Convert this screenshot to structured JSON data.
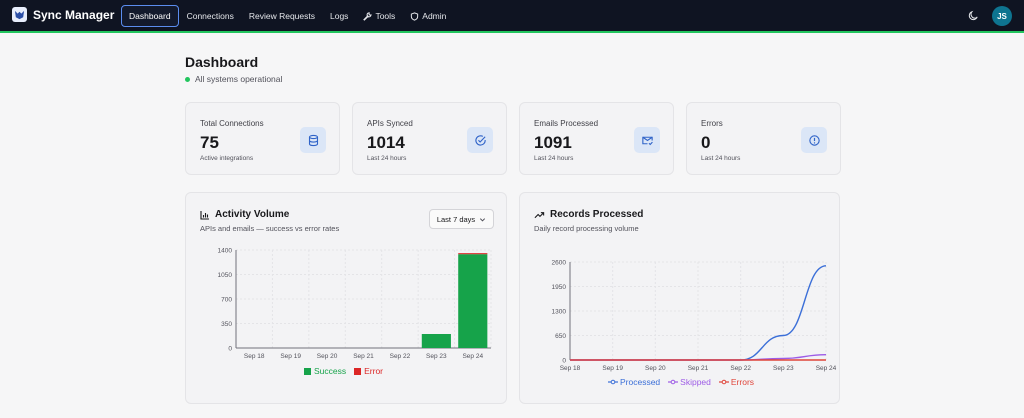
{
  "header": {
    "brand": "Sync Manager",
    "nav": [
      {
        "label": "Dashboard",
        "active": true
      },
      {
        "label": "Connections"
      },
      {
        "label": "Review Requests"
      },
      {
        "label": "Logs"
      },
      {
        "label": "Tools",
        "icon": "wrench-icon"
      },
      {
        "label": "Admin",
        "icon": "shield-icon"
      }
    ],
    "user_initials": "JS",
    "accent": "#22c55e"
  },
  "page": {
    "title": "Dashboard",
    "status": "All systems operational"
  },
  "stats": [
    {
      "label": "Total Connections",
      "value": "75",
      "sub": "Active integrations",
      "icon": "database-icon"
    },
    {
      "label": "APIs Synced",
      "value": "1014",
      "sub": "Last 24 hours",
      "icon": "check-circle-icon"
    },
    {
      "label": "Emails Processed",
      "value": "1091",
      "sub": "Last 24 hours",
      "icon": "mail-check-icon"
    },
    {
      "label": "Errors",
      "value": "0",
      "sub": "Last 24 hours",
      "icon": "alert-circle-icon"
    }
  ],
  "activity": {
    "title": "Activity Volume",
    "subtitle": "APIs and emails — success vs error rates",
    "range_label": "Last 7 days"
  },
  "records": {
    "title": "Records Processed",
    "subtitle": "Daily record processing volume"
  },
  "chart_data": [
    {
      "type": "bar",
      "stacked": true,
      "categories": [
        "Sep 18",
        "Sep 19",
        "Sep 20",
        "Sep 21",
        "Sep 22",
        "Sep 23",
        "Sep 24"
      ],
      "series": [
        {
          "name": "Success",
          "color": "#16a34a",
          "values": [
            0,
            0,
            0,
            0,
            0,
            200,
            1340
          ]
        },
        {
          "name": "Error",
          "color": "#dc2626",
          "values": [
            0,
            0,
            0,
            0,
            0,
            0,
            15
          ]
        }
      ],
      "ylim": [
        0,
        1400
      ],
      "yticks": [
        0,
        350,
        700,
        1050,
        1400
      ],
      "grid": true,
      "legend": "bottom"
    },
    {
      "type": "line",
      "x": [
        "Sep 18",
        "Sep 19",
        "Sep 20",
        "Sep 21",
        "Sep 22",
        "Sep 23",
        "Sep 24"
      ],
      "series": [
        {
          "name": "Processed",
          "color": "#3b6fd8",
          "values": [
            0,
            0,
            0,
            0,
            0,
            650,
            2500
          ]
        },
        {
          "name": "Skipped",
          "color": "#9d5ce6",
          "values": [
            0,
            0,
            0,
            0,
            0,
            40,
            140
          ]
        },
        {
          "name": "Errors",
          "color": "#e0453a",
          "values": [
            0,
            0,
            0,
            0,
            0,
            0,
            0
          ]
        }
      ],
      "ylim": [
        0,
        2600
      ],
      "yticks": [
        0,
        650,
        1300,
        1950,
        2600
      ],
      "grid": true,
      "legend": "bottom"
    }
  ]
}
